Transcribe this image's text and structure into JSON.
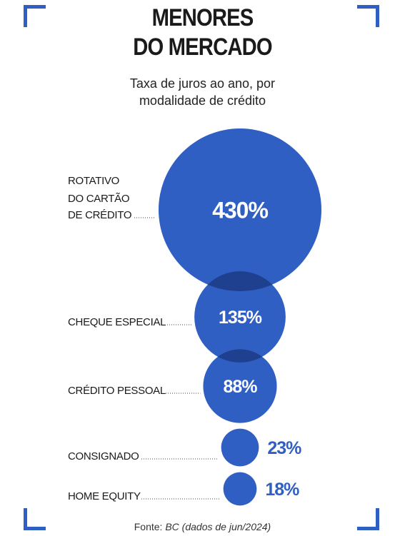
{
  "header": {
    "title_line1": "MENORES",
    "title_line2": "DO MERCADO",
    "subtitle_line1": "Taxa de juros ao ano, por",
    "subtitle_line2": "modalidade de crédito"
  },
  "source": {
    "prefix": "Fonte: ",
    "name": "BC",
    "detail": " (dados de jun/2024)"
  },
  "colors": {
    "accent": "#2f5fc3",
    "bubble_dark": "#1f3f8f"
  },
  "chart_data": {
    "type": "bubble",
    "title": "MENORES DO MERCADO",
    "subtitle": "Taxa de juros ao ano, por modalidade de crédito",
    "unit": "%",
    "categories": [
      [
        "ROTATIVO",
        "DO CARTÃO",
        "DE CRÉDITO"
      ],
      [
        "CHEQUE ESPECIAL"
      ],
      [
        "CRÉDITO PESSOAL"
      ],
      [
        "CONSIGNADO"
      ],
      [
        "HOME EQUITY"
      ]
    ],
    "values": [
      430,
      135,
      88,
      23,
      18
    ],
    "value_labels": [
      "430%",
      "135%",
      "88%",
      "23%",
      "18%"
    ]
  }
}
